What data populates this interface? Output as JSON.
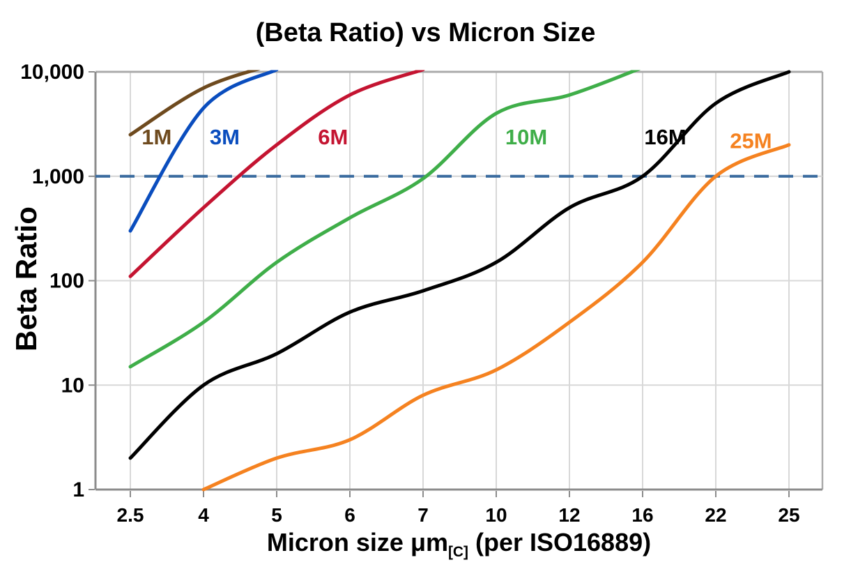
{
  "title": "(Beta Ratio) vs Micron Size",
  "chart_data": {
    "type": "line",
    "title": "(Beta Ratio) vs Micron Size",
    "x_axis": {
      "label_pre": "Micron size μm",
      "label_sub": "[C]",
      "label_post": " (per ISO16889)",
      "scale": "categorical",
      "categories": [
        2.5,
        4,
        5,
        6,
        7,
        10,
        12,
        16,
        22,
        25
      ],
      "tick_labels": [
        "2.5",
        "4",
        "5",
        "6",
        "7",
        "10",
        "12",
        "16",
        "22",
        "25"
      ]
    },
    "y_axis": {
      "label": "Beta Ratio",
      "scale": "log",
      "range": [
        1,
        10000
      ],
      "ticks": [
        1,
        10,
        100,
        1000,
        10000
      ],
      "tick_labels": [
        "1",
        "10",
        "100",
        "1,000",
        "10,000"
      ]
    },
    "threshold_line": {
      "value": 1000,
      "style": "dashed",
      "color": "#3A6B9F"
    },
    "grid": true,
    "legend": "inline-labels",
    "series": [
      {
        "name": "1M",
        "color": "#6E4A1E",
        "values": [
          2500,
          7000,
          12000,
          null,
          null,
          null,
          null,
          null,
          null,
          null
        ],
        "label_pos": {
          "x_index": 0.36,
          "value": 2400
        }
      },
      {
        "name": "3M",
        "color": "#0A4DBE",
        "values": [
          300,
          4500,
          10500,
          null,
          null,
          null,
          null,
          null,
          null,
          null
        ],
        "label_pos": {
          "x_index": 1.29,
          "value": 2400
        }
      },
      {
        "name": "6M",
        "color": "#C41431",
        "values": [
          110,
          500,
          2000,
          6000,
          10500,
          null,
          null,
          null,
          null,
          null
        ],
        "label_pos": {
          "x_index": 2.77,
          "value": 2400
        }
      },
      {
        "name": "10M",
        "color": "#3FAE49",
        "values": [
          15,
          40,
          150,
          400,
          950,
          4000,
          6000,
          11000,
          null,
          null
        ],
        "label_pos": {
          "x_index": 5.41,
          "value": 2400
        }
      },
      {
        "name": "16M",
        "color": "#000000",
        "values": [
          2,
          10,
          20,
          50,
          80,
          150,
          500,
          1000,
          5000,
          10000
        ],
        "label_pos": {
          "x_index": 7.31,
          "value": 2400
        }
      },
      {
        "name": "25M",
        "color": "#F58220",
        "values": [
          null,
          1,
          2,
          3,
          8,
          14,
          40,
          150,
          1000,
          2000
        ],
        "label_pos": {
          "x_index": 8.48,
          "value": 2200
        }
      }
    ],
    "style": {
      "grid_color": "#D8D8D8",
      "axis_color": "#8C8C8C",
      "border_color": "#ABABAB",
      "tick_text_color": "#000000",
      "background": "#FFFFFF"
    }
  }
}
